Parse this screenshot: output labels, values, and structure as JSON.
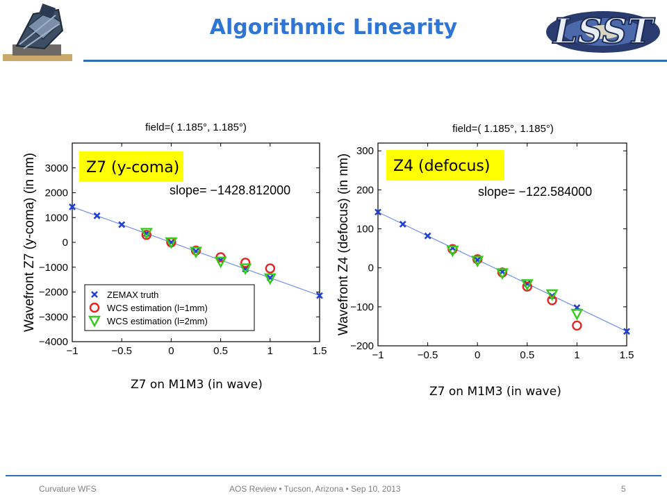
{
  "slide": {
    "title": "Algorithmic Linearity",
    "footer_left": "Curvature WFS",
    "footer_center": "AOS Review • Tucson, Arizona • Sep 10, 2013",
    "page_number": "5",
    "caption_left": "Z7 on M1M3 (in wave)",
    "caption_right": "Z7 on M1M3 (in wave)",
    "logo_right_text": "LSST",
    "accent_color": "#2e75d6"
  },
  "chart_data": [
    {
      "type": "scatter",
      "title": "field=( 1.185°,  1.185°)",
      "box_label": "Z7 (y-coma)",
      "slope_text": "slope= −1428.812000",
      "xlabel": "",
      "ylabel": "Wavefront Z7 (y-coma) (in nm)",
      "xlim": [
        -1,
        1.5
      ],
      "ylim": [
        -4000,
        4000
      ],
      "xticks": [
        -1,
        -0.5,
        0,
        0.5,
        1,
        1.5
      ],
      "xtick_labels": [
        "−1",
        "−0.5",
        "0",
        "0.5",
        "1",
        "1.5"
      ],
      "yticks": [
        -4000,
        -3000,
        -2000,
        -1000,
        0,
        1000,
        2000,
        3000
      ],
      "ytick_labels": [
        "−4000",
        "−3000",
        "−2000",
        "−1000",
        "0",
        "1000",
        "2000",
        "3000"
      ],
      "fit_line": {
        "x": [
          -1,
          1.5
        ],
        "y": [
          1429,
          -2143
        ]
      },
      "legend_position": "lower-left",
      "series": [
        {
          "name": "ZEMAX truth",
          "marker": "x",
          "color": "#1f3fd6",
          "x": [
            -1,
            -0.75,
            -0.5,
            -0.25,
            0,
            0.25,
            0.5,
            0.75,
            1,
            1.5
          ],
          "y": [
            1429,
            1072,
            714,
            357,
            0,
            -357,
            -714,
            -1072,
            -1429,
            -2143
          ]
        },
        {
          "name": "WCS estimation (l=1mm)",
          "marker": "o",
          "color": "#e8231f",
          "x": [
            -0.25,
            0,
            0.25,
            0.5,
            0.75,
            1
          ],
          "y": [
            300,
            0,
            -330,
            -600,
            -820,
            -1050
          ]
        },
        {
          "name": "WCS estimation (l=2mm)",
          "marker": "v",
          "color": "#33cc1a",
          "x": [
            -0.25,
            0,
            0.25,
            0.5,
            0.75,
            1
          ],
          "y": [
            380,
            0,
            -380,
            -780,
            -1050,
            -1450
          ]
        }
      ]
    },
    {
      "type": "scatter",
      "title": "field=( 1.185°,  1.185°)",
      "box_label": "Z4 (defocus)",
      "slope_text": "slope=  −122.584000",
      "xlabel": "",
      "ylabel": "Wavefront Z4 (defocus) (in nm)",
      "xlim": [
        -1,
        1.5
      ],
      "ylim": [
        -200,
        320
      ],
      "xticks": [
        -1,
        -0.5,
        0,
        0.5,
        1,
        1.5
      ],
      "xtick_labels": [
        "−1",
        "−0.5",
        "0",
        "0.5",
        "1",
        "1.5"
      ],
      "yticks": [
        -200,
        -100,
        0,
        100,
        200,
        300
      ],
      "ytick_labels": [
        "−200",
        "−100",
        "0",
        "100",
        "200",
        "300"
      ],
      "fit_line": {
        "x": [
          -1,
          1.5
        ],
        "y": [
          143,
          -163
        ]
      },
      "series": [
        {
          "name": "ZEMAX truth",
          "marker": "x",
          "color": "#1f3fd6",
          "x": [
            -1,
            -0.75,
            -0.5,
            -0.25,
            0,
            0.25,
            0.5,
            0.75,
            1,
            1.5
          ],
          "y": [
            143,
            112,
            82,
            51,
            20,
            -10,
            -41,
            -72,
            -102,
            -163
          ]
        },
        {
          "name": "WCS estimation (l=1mm)",
          "marker": "o",
          "color": "#e8231f",
          "x": [
            -0.25,
            0,
            0.25,
            0.5,
            0.75,
            1
          ],
          "y": [
            48,
            22,
            -12,
            -48,
            -83,
            -148
          ]
        },
        {
          "name": "WCS estimation (l=2mm)",
          "marker": "v",
          "color": "#33cc1a",
          "x": [
            -0.25,
            0,
            0.25,
            0.5,
            0.75,
            1
          ],
          "y": [
            44,
            18,
            -14,
            -42,
            -68,
            -118
          ]
        }
      ]
    }
  ]
}
